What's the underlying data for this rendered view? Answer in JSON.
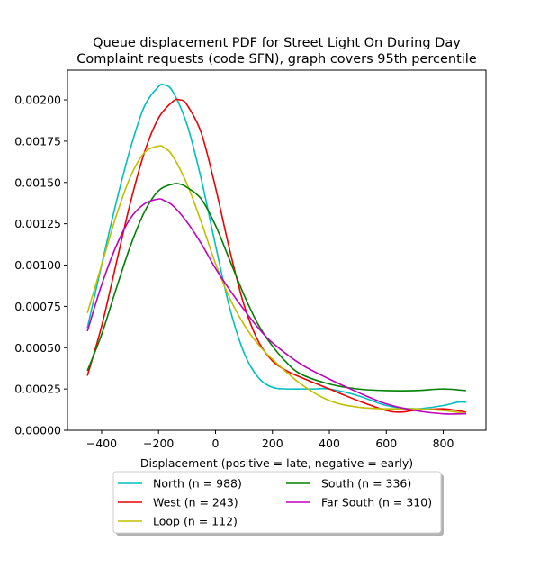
{
  "chart_data": {
    "type": "line",
    "title_line1": "Queue displacement PDF for Street Light On During Day",
    "title_line2": "Complaint  requests (code SFN), graph covers 95th percentile",
    "xlabel": "Displacement (positive = late, negative = early)",
    "ylabel": "",
    "xlim": [
      -520,
      950
    ],
    "ylim": [
      0,
      0.00218
    ],
    "x_ticks": [
      -400,
      -200,
      0,
      200,
      400,
      600,
      800
    ],
    "x_tick_labels": [
      "−400",
      "−200",
      "0",
      "200",
      "400",
      "600",
      "800"
    ],
    "y_ticks": [
      0,
      0.00025,
      0.0005,
      0.00075,
      0.001,
      0.00125,
      0.0015,
      0.00175,
      0.002
    ],
    "y_tick_labels": [
      "0.00000",
      "0.00025",
      "0.00050",
      "0.00075",
      "0.00100",
      "0.00125",
      "0.00150",
      "0.00175",
      "0.00200"
    ],
    "grid": false,
    "legend_placement": "below plot, two columns",
    "series": [
      {
        "name": "North (n = 988)",
        "color": "#00bfbf",
        "x": [
          -450,
          -400,
          -350,
          -300,
          -250,
          -200,
          -180,
          -150,
          -100,
          -50,
          0,
          50,
          100,
          150,
          200,
          250,
          300,
          350,
          400,
          500,
          600,
          700,
          800,
          850,
          880
        ],
        "y": [
          0.00062,
          0.001,
          0.00137,
          0.0017,
          0.00196,
          0.00208,
          0.00209,
          0.00205,
          0.00185,
          0.00152,
          0.00112,
          0.00074,
          0.00047,
          0.00032,
          0.00026,
          0.00025,
          0.00025,
          0.00025,
          0.00025,
          0.00021,
          0.00015,
          0.00013,
          0.00015,
          0.00017,
          0.00017
        ]
      },
      {
        "name": "West (n = 243)",
        "color": "#ee0000",
        "x": [
          -450,
          -400,
          -350,
          -300,
          -250,
          -200,
          -150,
          -125,
          -100,
          -50,
          0,
          50,
          100,
          150,
          200,
          250,
          300,
          400,
          500,
          600,
          650,
          700,
          800,
          880
        ],
        "y": [
          0.00033,
          0.00063,
          0.001,
          0.00137,
          0.00168,
          0.00189,
          0.00199,
          0.002,
          0.00197,
          0.0018,
          0.00147,
          0.00109,
          0.00076,
          0.00054,
          0.00042,
          0.00036,
          0.00032,
          0.00025,
          0.00018,
          0.00012,
          0.00011,
          0.00012,
          0.00013,
          0.00011
        ]
      },
      {
        "name": "Loop (n = 112)",
        "color": "#bfbf00",
        "x": [
          -450,
          -400,
          -350,
          -300,
          -250,
          -200,
          -180,
          -150,
          -100,
          -50,
          0,
          50,
          100,
          150,
          200,
          300,
          400,
          500,
          600,
          700,
          800,
          880
        ],
        "y": [
          0.00071,
          0.001,
          0.00129,
          0.00153,
          0.00168,
          0.00172,
          0.00171,
          0.00166,
          0.00149,
          0.00126,
          0.00101,
          0.0008,
          0.00064,
          0.00052,
          0.00043,
          0.00028,
          0.00018,
          0.00014,
          0.00013,
          0.00013,
          0.00012,
          0.0001
        ]
      },
      {
        "name": "South (n = 336)",
        "color": "#008000",
        "x": [
          -450,
          -400,
          -350,
          -300,
          -250,
          -200,
          -150,
          -125,
          -100,
          -50,
          0,
          50,
          100,
          150,
          200,
          250,
          300,
          400,
          500,
          600,
          700,
          800,
          880
        ],
        "y": [
          0.00036,
          0.00058,
          0.00085,
          0.00111,
          0.00132,
          0.00145,
          0.00149,
          0.00149,
          0.00147,
          0.0014,
          0.00124,
          0.00103,
          0.00082,
          0.00064,
          0.00051,
          0.00041,
          0.00034,
          0.00028,
          0.00025,
          0.00024,
          0.00024,
          0.00025,
          0.00024
        ]
      },
      {
        "name": "Far South (n = 310)",
        "color": "#bf00bf",
        "x": [
          -450,
          -400,
          -350,
          -300,
          -250,
          -200,
          -180,
          -150,
          -100,
          -50,
          0,
          50,
          100,
          150,
          200,
          300,
          400,
          500,
          600,
          700,
          800,
          880
        ],
        "y": [
          0.0006,
          0.00088,
          0.00111,
          0.00128,
          0.00137,
          0.0014,
          0.00139,
          0.00136,
          0.00126,
          0.00113,
          0.00098,
          0.00085,
          0.00073,
          0.00062,
          0.00053,
          0.0004,
          0.00031,
          0.00023,
          0.00016,
          0.00012,
          0.0001,
          0.0001
        ]
      }
    ]
  }
}
